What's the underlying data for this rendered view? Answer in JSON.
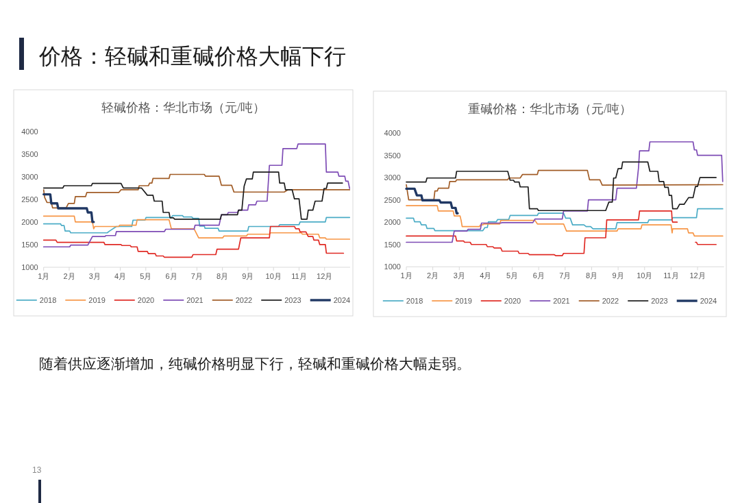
{
  "chart_data": [
    {
      "type": "line",
      "title": "轻碱价格：华北市场（元/吨）",
      "annotations": [
        "价格：轻碱和重碱价格大幅下行",
        "随着供应逐渐增加，纯碱价格明显下行，轻碱和重碱价格大幅走弱。",
        "13"
      ],
      "xlim": [
        1,
        13
      ],
      "xticks": [
        {
          "value": 1,
          "label": "1月"
        },
        {
          "value": 2,
          "label": "2月"
        },
        {
          "value": 3,
          "label": "3月"
        },
        {
          "value": 4,
          "label": "4月"
        },
        {
          "value": 5,
          "label": "5月"
        },
        {
          "value": 6,
          "label": "6月"
        },
        {
          "value": 7,
          "label": "7月"
        },
        {
          "value": 8,
          "label": "8月"
        },
        {
          "value": 9,
          "label": "9月"
        },
        {
          "value": 10,
          "label": "10月"
        },
        {
          "value": 11,
          "label": "11月"
        },
        {
          "value": 12,
          "label": "12月"
        }
      ],
      "ylim": [
        1000,
        4000
      ],
      "yticks": [
        1000,
        1500,
        2000,
        2500,
        3000,
        3500,
        4000
      ],
      "legend": "bottom",
      "series": [
        {
          "name": "2018",
          "color": "#4bacc6",
          "x": [
            1.0,
            1.66,
            1.7,
            1.8,
            1.84,
            2.02,
            2.06,
            3.49,
            3.58,
            3.85,
            4.45,
            4.5,
            4.97,
            5.01,
            6.0,
            6.05,
            6.44,
            6.48,
            6.8,
            6.85,
            7.07,
            7.11,
            7.29,
            7.32,
            7.83,
            7.87,
            8.99,
            9.03,
            10.2,
            10.24,
            11.0,
            11.04,
            12.03,
            12.07,
            12.98
          ],
          "values": [
            1960,
            1960,
            1920,
            1920,
            1800,
            1800,
            1760,
            1760,
            1800,
            1900,
            1900,
            2040,
            2040,
            2100,
            2100,
            2140,
            2140,
            2110,
            2110,
            2080,
            2080,
            1910,
            1910,
            1860,
            1860,
            1800,
            1800,
            1900,
            1900,
            1940,
            1940,
            2000,
            2000,
            2100,
            2100
          ]
        },
        {
          "name": "2019",
          "color": "#f79646",
          "x": [
            1.0,
            2.2,
            2.24,
            2.91,
            2.96,
            3.0,
            3.94,
            3.98,
            4.62,
            4.66,
            5.91,
            6.0,
            6.89,
            7.07,
            8.01,
            8.06,
            8.94,
            8.99,
            9.84,
            9.88,
            11.09,
            11.13,
            11.76,
            11.81,
            12.03,
            12.07,
            12.98
          ],
          "values": [
            2130,
            2130,
            2000,
            2000,
            1850,
            1900,
            1900,
            1930,
            1930,
            2050,
            2050,
            1850,
            1850,
            1650,
            1650,
            1690,
            1690,
            1730,
            1730,
            1760,
            1760,
            1730,
            1730,
            1650,
            1650,
            1620,
            1620
          ]
        },
        {
          "name": "2020",
          "color": "#e02a24",
          "x": [
            1.0,
            1.48,
            1.53,
            3.36,
            3.4,
            4.03,
            4.07,
            4.39,
            4.43,
            4.66,
            4.7,
            5.06,
            5.1,
            5.37,
            5.41,
            5.68,
            5.73,
            6.8,
            6.85,
            7.74,
            7.79,
            8.63,
            8.72,
            9.84,
            9.88,
            10.82,
            10.87,
            11.0,
            11.04,
            11.27,
            11.36,
            11.54,
            11.58,
            11.76,
            11.81,
            12.03,
            12.07,
            12.74
          ],
          "values": [
            1600,
            1600,
            1550,
            1550,
            1500,
            1500,
            1480,
            1480,
            1450,
            1450,
            1350,
            1350,
            1300,
            1300,
            1250,
            1250,
            1220,
            1220,
            1280,
            1280,
            1400,
            1400,
            1650,
            1650,
            1900,
            1900,
            1850,
            1850,
            1780,
            1780,
            1680,
            1680,
            1600,
            1600,
            1500,
            1500,
            1310,
            1310
          ]
        },
        {
          "name": "2021",
          "color": "#7d4bb5",
          "x": [
            1.0,
            2.02,
            2.06,
            2.73,
            2.91,
            3.4,
            3.44,
            3.81,
            3.85,
            5.73,
            5.78,
            6.89,
            6.93,
            7.87,
            7.96,
            8.19,
            8.23,
            8.59,
            8.63,
            8.99,
            9.03,
            9.3,
            9.35,
            9.75,
            9.84,
            10.33,
            10.37,
            10.91,
            10.96,
            12.03,
            12.07,
            12.52,
            12.56,
            12.79,
            12.83,
            12.92,
            12.98
          ],
          "values": [
            1450,
            1450,
            1490,
            1490,
            1680,
            1680,
            1700,
            1700,
            1790,
            1790,
            1840,
            1840,
            1930,
            1930,
            2160,
            2160,
            2210,
            2210,
            2260,
            2260,
            2380,
            2380,
            2460,
            2460,
            3250,
            3250,
            3620,
            3620,
            3720,
            3720,
            3100,
            3100,
            3010,
            3010,
            2900,
            2900,
            2740
          ]
        },
        {
          "name": "2022",
          "color": "#a15c26",
          "x": [
            1.0,
            1.04,
            1.13,
            1.3,
            1.35,
            1.88,
            1.97,
            2.2,
            2.24,
            2.64,
            2.69,
            3.94,
            4.03,
            4.7,
            4.74,
            5.1,
            5.15,
            5.24,
            5.28,
            5.91,
            5.95,
            7.29,
            7.34,
            7.87,
            7.96,
            8.36,
            8.45,
            10.42,
            10.56,
            12.98
          ],
          "values": [
            2710,
            2540,
            2430,
            2430,
            2310,
            2310,
            2410,
            2410,
            2560,
            2560,
            2650,
            2650,
            2710,
            2710,
            2800,
            2800,
            2860,
            2860,
            2960,
            2960,
            3050,
            3050,
            3010,
            3010,
            2810,
            2810,
            2660,
            2660,
            2710,
            2710
          ]
        },
        {
          "name": "2023",
          "color": "#1c1c1c",
          "x": [
            1.0,
            1.75,
            1.8,
            2.87,
            2.91,
            4.03,
            4.12,
            4.83,
            5.06,
            5.28,
            5.33,
            5.64,
            5.68,
            5.91,
            5.95,
            6.08,
            6.13,
            7.92,
            7.96,
            8.59,
            8.63,
            8.76,
            8.85,
            8.94,
            9.17,
            9.21,
            10.2,
            10.24,
            10.42,
            10.47,
            10.73,
            10.82,
            11.0,
            11.09,
            11.31,
            11.36,
            11.54,
            11.63,
            11.9,
            11.98,
            12.07,
            12.12,
            12.7
          ],
          "values": [
            2750,
            2750,
            2800,
            2800,
            2850,
            2850,
            2750,
            2750,
            2590,
            2590,
            2460,
            2460,
            2210,
            2210,
            2090,
            2090,
            2060,
            2060,
            2160,
            2160,
            2260,
            2260,
            2790,
            2950,
            2950,
            3100,
            3100,
            2860,
            2860,
            2710,
            2710,
            2510,
            2510,
            2060,
            2060,
            2260,
            2260,
            2460,
            2460,
            2740,
            2740,
            2860,
            2860
          ]
        },
        {
          "name": "2024",
          "color": "#203864",
          "x": [
            1.0,
            1.26,
            1.3,
            1.53,
            1.57,
            2.69,
            2.73,
            2.87,
            2.91,
            2.96
          ],
          "values": [
            2610,
            2610,
            2410,
            2410,
            2300,
            2300,
            2210,
            2210,
            2000,
            2000
          ]
        }
      ]
    },
    {
      "type": "line",
      "title": "重碱价格：华北市场（元/吨）",
      "xlim": [
        1,
        13
      ],
      "xticks": [
        {
          "value": 1,
          "label": "1月"
        },
        {
          "value": 2,
          "label": "2月"
        },
        {
          "value": 3,
          "label": "3月"
        },
        {
          "value": 4,
          "label": "4月"
        },
        {
          "value": 5,
          "label": "5月"
        },
        {
          "value": 6,
          "label": "6月"
        },
        {
          "value": 7,
          "label": "7月"
        },
        {
          "value": 8,
          "label": "8月"
        },
        {
          "value": 9,
          "label": "9月"
        },
        {
          "value": 10,
          "label": "10月"
        },
        {
          "value": 11,
          "label": "11月"
        },
        {
          "value": 12,
          "label": "12月"
        }
      ],
      "ylim": [
        1000,
        4000
      ],
      "yticks": [
        1000,
        1500,
        2000,
        2500,
        3000,
        3500,
        4000
      ],
      "legend": "bottom",
      "series": [
        {
          "name": "2018",
          "color": "#4bacc6",
          "x": [
            1.0,
            1.27,
            1.31,
            1.52,
            1.57,
            1.74,
            1.78,
            2.04,
            2.08,
            3.89,
            3.97,
            4.06,
            4.1,
            4.4,
            4.45,
            4.87,
            4.92,
            5.95,
            5.99,
            6.94,
            7.02,
            7.19,
            7.28,
            7.71,
            7.79,
            7.96,
            8.05,
            8.91,
            8.96,
            10.12,
            10.16,
            11.02,
            11.06,
            11.96,
            12.0,
            12.95
          ],
          "values": [
            2090,
            2090,
            2010,
            2010,
            1940,
            1940,
            1860,
            1860,
            1810,
            1810,
            1880,
            1880,
            2010,
            2010,
            2060,
            2060,
            2150,
            2150,
            2200,
            2200,
            2090,
            2090,
            1940,
            1940,
            1900,
            1900,
            1850,
            1850,
            1990,
            1990,
            2050,
            2050,
            2100,
            2100,
            2300,
            2300
          ]
        },
        {
          "name": "2019",
          "color": "#f79646",
          "x": [
            1.0,
            2.17,
            2.21,
            2.77,
            2.81,
            3.03,
            3.07,
            3.11,
            3.76,
            3.8,
            3.89,
            3.93,
            4.53,
            4.57,
            5.86,
            5.95,
            6.94,
            7.05,
            8.96,
            9.0,
            9.86,
            9.9,
            11.0,
            11.04,
            11.06,
            11.62,
            11.66,
            11.83,
            11.88,
            12.95
          ],
          "values": [
            2370,
            2370,
            2250,
            2250,
            2140,
            2140,
            2040,
            1900,
            1900,
            1940,
            1940,
            1960,
            1960,
            2040,
            2040,
            1960,
            1960,
            1800,
            1800,
            1850,
            1850,
            1940,
            1940,
            1760,
            1850,
            1850,
            1760,
            1760,
            1690,
            1690
          ]
        },
        {
          "name": "2020",
          "color": "#e02a24",
          "x": [
            1.0,
            2.86,
            2.9,
            3.16,
            3.2,
            3.41,
            3.46,
            4.02,
            4.06,
            4.27,
            4.32,
            4.57,
            4.62,
            5.22,
            5.26,
            5.6,
            5.65,
            6.59,
            6.64,
            6.89,
            6.94,
            7.71,
            7.75,
            8.53,
            8.57,
            9.77,
            9.81,
            11.02,
            11.04,
            11.06,
            11.23,
            11.5,
            11.92,
            11.96,
            12.0,
            12.7
          ],
          "values": [
            1690,
            1690,
            1580,
            1580,
            1550,
            1550,
            1500,
            1500,
            1450,
            1450,
            1420,
            1420,
            1350,
            1350,
            1300,
            1300,
            1270,
            1270,
            1250,
            1250,
            1300,
            1300,
            1650,
            1650,
            2050,
            2050,
            2250,
            2250,
            2040,
            2000,
            2000,
            null,
            1550,
            1550,
            1500,
            1500
          ]
        },
        {
          "name": "2021",
          "color": "#7d4bb5",
          "x": [
            1.0,
            2.73,
            2.81,
            3.29,
            3.33,
            3.8,
            3.84,
            4.57,
            4.62,
            5.78,
            5.86,
            6.89,
            6.94,
            7.84,
            7.88,
            8.91,
            8.96,
            9.69,
            9.77,
            9.81,
            10.16,
            10.2,
            11.83,
            11.88,
            11.96,
            12.0,
            12.91,
            12.95
          ],
          "values": [
            1550,
            1550,
            1800,
            1800,
            1840,
            1840,
            1980,
            1980,
            1990,
            1990,
            2070,
            2070,
            2250,
            2250,
            2500,
            2500,
            2760,
            2760,
            3220,
            3600,
            3600,
            3800,
            3800,
            3620,
            3620,
            3500,
            3500,
            2910
          ]
        },
        {
          "name": "2022",
          "color": "#a15c26",
          "x": [
            1.0,
            1.09,
            2.04,
            2.08,
            2.17,
            2.21,
            2.6,
            2.64,
            2.86,
            2.9,
            4.83,
            4.87,
            5.3,
            5.39,
            5.95,
            5.99,
            7.84,
            7.92,
            8.31,
            8.4,
            12.95
          ],
          "values": [
            2840,
            2500,
            2500,
            2700,
            2700,
            2760,
            2760,
            2910,
            2910,
            2950,
            2950,
            2990,
            2990,
            3070,
            3070,
            3160,
            3160,
            2950,
            2950,
            2830,
            2840
          ]
        },
        {
          "name": "2023",
          "color": "#1c1c1c",
          "x": [
            1.0,
            1.74,
            1.78,
            2.86,
            2.9,
            4.83,
            4.92,
            5.05,
            5.09,
            5.26,
            5.3,
            5.6,
            5.65,
            5.95,
            5.99,
            8.53,
            8.65,
            8.78,
            8.83,
            8.91,
            9.0,
            9.13,
            9.17,
            10.12,
            10.2,
            10.5,
            10.55,
            10.72,
            10.76,
            10.89,
            10.93,
            11.02,
            11.06,
            11.23,
            11.32,
            11.49,
            11.66,
            11.83,
            11.92,
            12.0,
            12.09,
            12.7
          ],
          "values": [
            2900,
            2900,
            2990,
            2990,
            3140,
            3140,
            2940,
            2940,
            2900,
            2900,
            2790,
            2790,
            2300,
            2300,
            2260,
            2260,
            2450,
            2450,
            2990,
            2990,
            3200,
            3200,
            3350,
            3350,
            3140,
            3140,
            2910,
            2910,
            2780,
            2780,
            2600,
            2600,
            2300,
            2300,
            2400,
            2400,
            2550,
            2550,
            2800,
            2800,
            3000,
            3000
          ]
        },
        {
          "name": "2024",
          "color": "#203864",
          "x": [
            1.0,
            1.31,
            1.4,
            1.57,
            1.61,
            2.25,
            2.3,
            2.68,
            2.73,
            2.86,
            2.9,
            2.94
          ],
          "values": [
            2750,
            2750,
            2600,
            2600,
            2490,
            2490,
            2440,
            2440,
            2320,
            2320,
            2200,
            2200
          ]
        }
      ]
    }
  ]
}
